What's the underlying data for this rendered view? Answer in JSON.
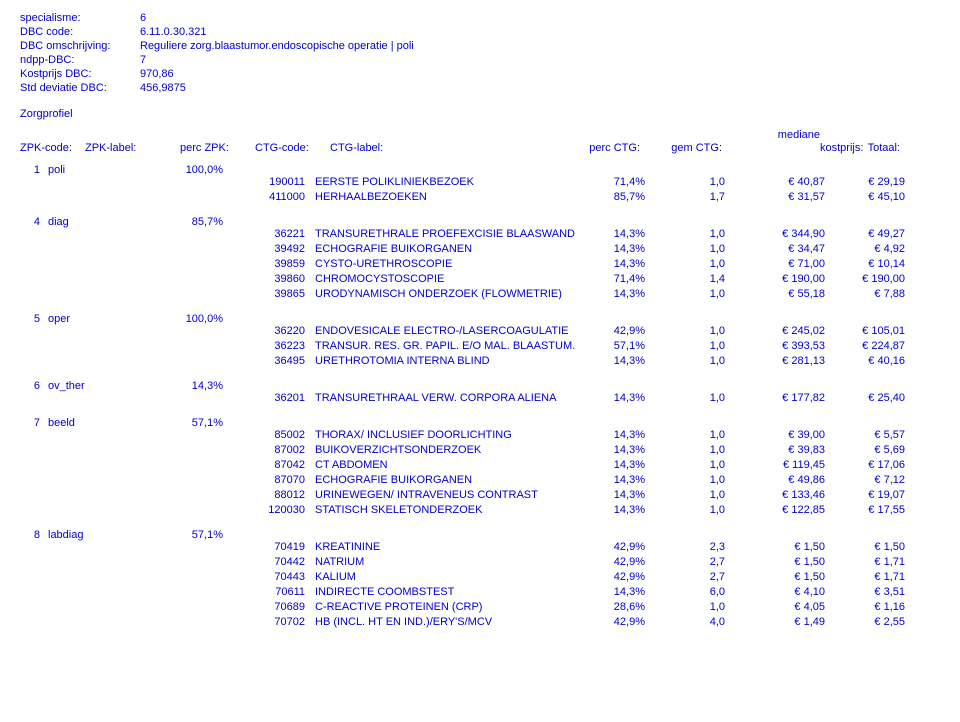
{
  "colors": {
    "text": "#0000cc",
    "background": "#ffffff"
  },
  "meta": [
    {
      "label": "specialisme:",
      "value": "6"
    },
    {
      "label": "DBC code:",
      "value": "6.11.0.30.321"
    },
    {
      "label": "DBC omschrijving:",
      "value": "Reguliere zorg.blaastumor.endoscopische operatie | poli"
    },
    {
      "label": "ndpp-DBC:",
      "value": "7"
    },
    {
      "label": "Kostprijs DBC:",
      "value": "970,86"
    },
    {
      "label": "Std deviatie DBC:",
      "value": "456,9875"
    }
  ],
  "sectionTitle": "Zorgprofiel",
  "headers": {
    "zpkcode": "ZPK-code:",
    "zpklabel": "ZPK-label:",
    "perczpk": "perc ZPK:",
    "ctgcode": "CTG-code:",
    "ctglabel": "CTG-label:",
    "percctg": "perc CTG:",
    "gemctg": "gem CTG:",
    "mediane_top": "mediane",
    "mediane_bot": "kostprijs:",
    "totaal": "Totaal:"
  },
  "groups": [
    {
      "code": "1",
      "label": "poli",
      "perc": "100,0%",
      "rows": [
        {
          "ctgcode": "190011",
          "ctglabel": "EERSTE POLIKLINIEKBEZOEK",
          "percctg": "71,4%",
          "gemctg": "1,0",
          "kostprijs": "€ 40,87",
          "totaal": "€ 29,19"
        },
        {
          "ctgcode": "411000",
          "ctglabel": "HERHAALBEZOEKEN",
          "percctg": "85,7%",
          "gemctg": "1,7",
          "kostprijs": "€ 31,57",
          "totaal": "€ 45,10"
        }
      ]
    },
    {
      "code": "4",
      "label": "diag",
      "perc": "85,7%",
      "rows": [
        {
          "ctgcode": "36221",
          "ctglabel": "TRANSURETHRALE PROEFEXCISIE BLAASWAND",
          "percctg": "14,3%",
          "gemctg": "1,0",
          "kostprijs": "€ 344,90",
          "totaal": "€ 49,27"
        },
        {
          "ctgcode": "39492",
          "ctglabel": "ECHOGRAFIE BUIKORGANEN",
          "percctg": "14,3%",
          "gemctg": "1,0",
          "kostprijs": "€ 34,47",
          "totaal": "€ 4,92"
        },
        {
          "ctgcode": "39859",
          "ctglabel": "CYSTO-URETHROSCOPIE",
          "percctg": "14,3%",
          "gemctg": "1,0",
          "kostprijs": "€ 71,00",
          "totaal": "€ 10,14"
        },
        {
          "ctgcode": "39860",
          "ctglabel": "CHROMOCYSTOSCOPIE",
          "percctg": "71,4%",
          "gemctg": "1,4",
          "kostprijs": "€ 190,00",
          "totaal": "€ 190,00"
        },
        {
          "ctgcode": "39865",
          "ctglabel": "URODYNAMISCH ONDERZOEK (FLOWMETRIE)",
          "percctg": "14,3%",
          "gemctg": "1,0",
          "kostprijs": "€ 55,18",
          "totaal": "€ 7,88"
        }
      ]
    },
    {
      "code": "5",
      "label": "oper",
      "perc": "100,0%",
      "rows": [
        {
          "ctgcode": "36220",
          "ctglabel": "ENDOVESICALE ELECTRO-/LASERCOAGULATIE",
          "percctg": "42,9%",
          "gemctg": "1,0",
          "kostprijs": "€ 245,02",
          "totaal": "€ 105,01"
        },
        {
          "ctgcode": "36223",
          "ctglabel": "TRANSUR. RES. GR. PAPIL. E/O MAL. BLAASTUM.",
          "percctg": "57,1%",
          "gemctg": "1,0",
          "kostprijs": "€ 393,53",
          "totaal": "€ 224,87"
        },
        {
          "ctgcode": "36495",
          "ctglabel": "URETHROTOMIA INTERNA BLIND",
          "percctg": "14,3%",
          "gemctg": "1,0",
          "kostprijs": "€ 281,13",
          "totaal": "€ 40,16"
        }
      ]
    },
    {
      "code": "6",
      "label": "ov_ther",
      "perc": "14,3%",
      "rows": [
        {
          "ctgcode": "36201",
          "ctglabel": "TRANSURETHRAAL VERW. CORPORA ALIENA",
          "percctg": "14,3%",
          "gemctg": "1,0",
          "kostprijs": "€ 177,82",
          "totaal": "€ 25,40"
        }
      ]
    },
    {
      "code": "7",
      "label": "beeld",
      "perc": "57,1%",
      "rows": [
        {
          "ctgcode": "85002",
          "ctglabel": "THORAX/ INCLUSIEF DOORLICHTING",
          "percctg": "14,3%",
          "gemctg": "1,0",
          "kostprijs": "€ 39,00",
          "totaal": "€ 5,57"
        },
        {
          "ctgcode": "87002",
          "ctglabel": "BUIKOVERZICHTSONDERZOEK",
          "percctg": "14,3%",
          "gemctg": "1,0",
          "kostprijs": "€ 39,83",
          "totaal": "€ 5,69"
        },
        {
          "ctgcode": "87042",
          "ctglabel": "CT ABDOMEN",
          "percctg": "14,3%",
          "gemctg": "1,0",
          "kostprijs": "€ 119,45",
          "totaal": "€ 17,06"
        },
        {
          "ctgcode": "87070",
          "ctglabel": "ECHOGRAFIE BUIKORGANEN",
          "percctg": "14,3%",
          "gemctg": "1,0",
          "kostprijs": "€ 49,86",
          "totaal": "€ 7,12"
        },
        {
          "ctgcode": "88012",
          "ctglabel": "URINEWEGEN/ INTRAVENEUS CONTRAST",
          "percctg": "14,3%",
          "gemctg": "1,0",
          "kostprijs": "€ 133,46",
          "totaal": "€ 19,07"
        },
        {
          "ctgcode": "120030",
          "ctglabel": "STATISCH SKELETONDERZOEK",
          "percctg": "14,3%",
          "gemctg": "1,0",
          "kostprijs": "€ 122,85",
          "totaal": "€ 17,55"
        }
      ]
    },
    {
      "code": "8",
      "label": "labdiag",
      "perc": "57,1%",
      "rows": [
        {
          "ctgcode": "70419",
          "ctglabel": "KREATININE",
          "percctg": "42,9%",
          "gemctg": "2,3",
          "kostprijs": "€ 1,50",
          "totaal": "€ 1,50"
        },
        {
          "ctgcode": "70442",
          "ctglabel": "NATRIUM",
          "percctg": "42,9%",
          "gemctg": "2,7",
          "kostprijs": "€ 1,50",
          "totaal": "€ 1,71"
        },
        {
          "ctgcode": "70443",
          "ctglabel": "KALIUM",
          "percctg": "42,9%",
          "gemctg": "2,7",
          "kostprijs": "€ 1,50",
          "totaal": "€ 1,71"
        },
        {
          "ctgcode": "70611",
          "ctglabel": "INDIRECTE COOMBSTEST",
          "percctg": "14,3%",
          "gemctg": "6,0",
          "kostprijs": "€ 4,10",
          "totaal": "€ 3,51"
        },
        {
          "ctgcode": "70689",
          "ctglabel": "C-REACTIVE PROTEINEN (CRP)",
          "percctg": "28,6%",
          "gemctg": "1,0",
          "kostprijs": "€ 4,05",
          "totaal": "€ 1,16"
        },
        {
          "ctgcode": "70702",
          "ctglabel": "HB (INCL. HT EN IND.)/ERY'S/MCV",
          "percctg": "42,9%",
          "gemctg": "4,0",
          "kostprijs": "€ 1,49",
          "totaal": "€ 2,55"
        }
      ]
    }
  ]
}
